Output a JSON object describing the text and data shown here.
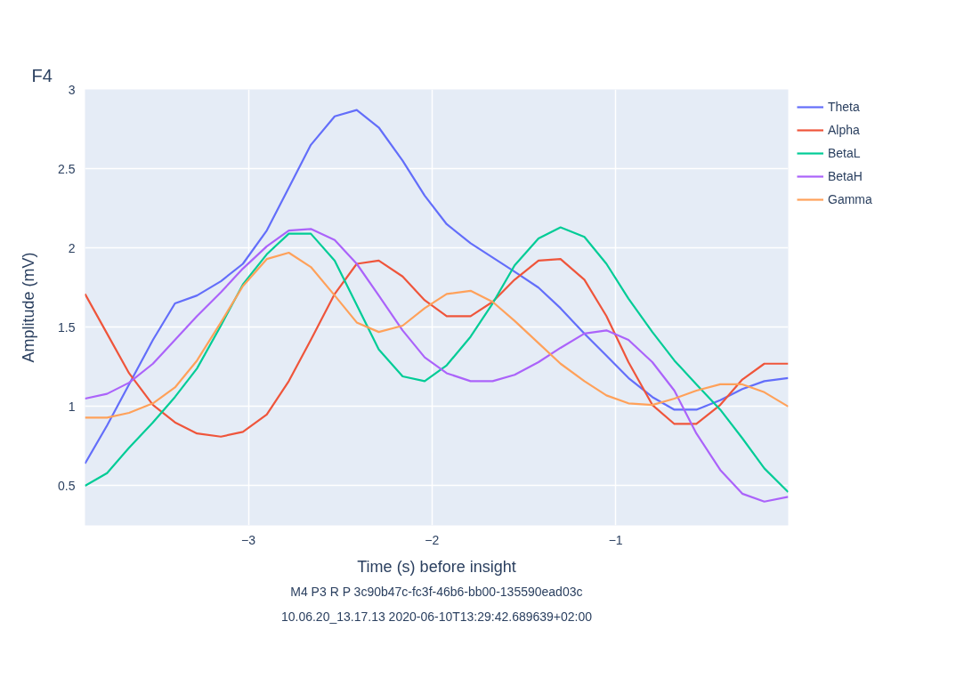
{
  "chart_data": {
    "type": "line",
    "title": "F4",
    "xlabel": "Time (s) before insight",
    "ylabel": "Amplitude (mV)",
    "annotations": [
      "M4 P3 R P 3c90b47c-fc3f-46b6-bb00-135590ead03c",
      "10.06.20_13.17.13 2020-06-10T13:29:42.689639+02:00"
    ],
    "x": [
      -3.89,
      -3.77,
      -3.65,
      -3.52,
      -3.4,
      -3.28,
      -3.15,
      -3.03,
      -2.9,
      -2.78,
      -2.66,
      -2.53,
      -2.41,
      -2.29,
      -2.16,
      -2.04,
      -1.92,
      -1.79,
      -1.67,
      -1.55,
      -1.42,
      -1.3,
      -1.17,
      -1.05,
      -0.93,
      -0.8,
      -0.68,
      -0.56,
      -0.43,
      -0.31,
      -0.19,
      -0.06
    ],
    "series": [
      {
        "name": "Theta",
        "color": "#636efa",
        "values": [
          0.64,
          0.88,
          1.14,
          1.42,
          1.65,
          1.7,
          1.79,
          1.9,
          2.11,
          2.38,
          2.65,
          2.83,
          2.87,
          2.76,
          2.55,
          2.33,
          2.15,
          2.03,
          1.94,
          1.85,
          1.75,
          1.62,
          1.46,
          1.32,
          1.18,
          1.06,
          0.98,
          0.98,
          1.04,
          1.11,
          1.16,
          1.18
        ]
      },
      {
        "name": "Alpha",
        "color": "#ef553b",
        "values": [
          1.71,
          1.46,
          1.21,
          1.01,
          0.9,
          0.83,
          0.81,
          0.84,
          0.95,
          1.16,
          1.42,
          1.71,
          1.9,
          1.92,
          1.82,
          1.67,
          1.57,
          1.57,
          1.66,
          1.8,
          1.92,
          1.93,
          1.8,
          1.57,
          1.28,
          1.01,
          0.89,
          0.89,
          1.01,
          1.17,
          1.27,
          1.27
        ]
      },
      {
        "name": "BetaL",
        "color": "#00cc96",
        "values": [
          0.5,
          0.58,
          0.74,
          0.9,
          1.06,
          1.24,
          1.51,
          1.77,
          1.96,
          2.09,
          2.09,
          1.92,
          1.64,
          1.36,
          1.19,
          1.16,
          1.26,
          1.44,
          1.65,
          1.89,
          2.06,
          2.13,
          2.07,
          1.9,
          1.68,
          1.47,
          1.29,
          1.14,
          0.98,
          0.8,
          0.61,
          0.46
        ]
      },
      {
        "name": "BetaH",
        "color": "#ab63fa",
        "values": [
          1.05,
          1.08,
          1.15,
          1.27,
          1.42,
          1.57,
          1.72,
          1.87,
          2.01,
          2.11,
          2.12,
          2.05,
          1.9,
          1.7,
          1.48,
          1.31,
          1.21,
          1.16,
          1.16,
          1.2,
          1.28,
          1.37,
          1.46,
          1.48,
          1.42,
          1.28,
          1.1,
          0.83,
          0.6,
          0.45,
          0.4,
          0.43
        ]
      },
      {
        "name": "Gamma",
        "color": "#ffa15a",
        "values": [
          0.93,
          0.93,
          0.96,
          1.02,
          1.12,
          1.29,
          1.53,
          1.76,
          1.93,
          1.97,
          1.88,
          1.7,
          1.53,
          1.47,
          1.51,
          1.62,
          1.71,
          1.73,
          1.66,
          1.54,
          1.4,
          1.27,
          1.16,
          1.07,
          1.02,
          1.01,
          1.05,
          1.1,
          1.14,
          1.14,
          1.09,
          1.0
        ]
      }
    ],
    "xlim": [
      -3.89,
      -0.06
    ],
    "ylim": [
      0.25,
      3.0
    ],
    "xticks": [
      {
        "value": -3,
        "label": "−3"
      },
      {
        "value": -2,
        "label": "−2"
      },
      {
        "value": -1,
        "label": "−1"
      }
    ],
    "yticks": [
      0.5,
      1,
      1.5,
      2,
      2.5,
      3
    ],
    "grid": true,
    "legend": "top right"
  }
}
